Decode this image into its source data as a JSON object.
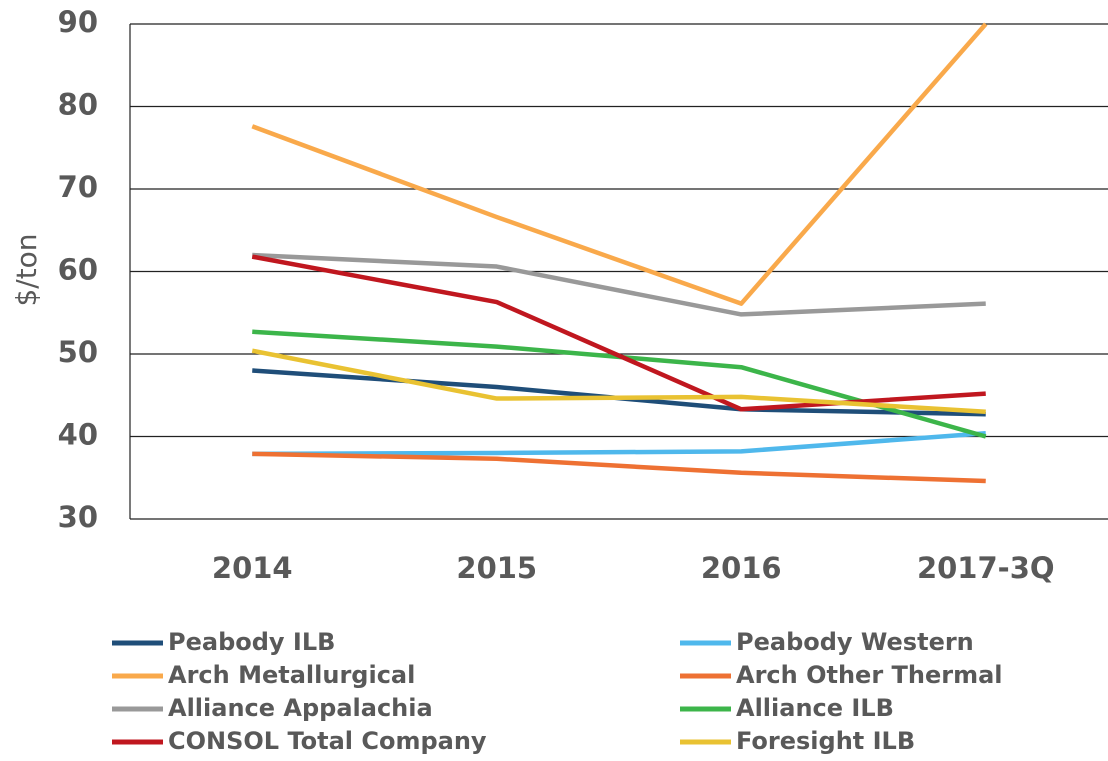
{
  "chart_data": {
    "type": "line",
    "y_label": "$/ton",
    "categories": [
      "2014",
      "2015",
      "2016",
      "2017-3Q"
    ],
    "ylim": [
      30,
      90
    ],
    "yticks": [
      30,
      40,
      50,
      60,
      70,
      80,
      90
    ],
    "grid": true,
    "series": [
      {
        "name": "Peabody ILB",
        "color": "#1f4e79",
        "values": [
          48.0,
          46.0,
          43.3,
          42.7
        ]
      },
      {
        "name": "Peabody Western",
        "color": "#4fb8ec",
        "values": [
          37.9,
          38.0,
          38.2,
          40.4
        ]
      },
      {
        "name": "Arch Metallurgical",
        "color": "#f9a94b",
        "values": [
          77.6,
          66.6,
          56.1,
          90.0
        ]
      },
      {
        "name": "Arch Other Thermal",
        "color": "#ee7133",
        "values": [
          37.9,
          37.3,
          35.6,
          34.6
        ]
      },
      {
        "name": "Alliance Appalachia",
        "color": "#999999",
        "values": [
          62.0,
          60.6,
          54.8,
          56.1
        ]
      },
      {
        "name": "Alliance ILB",
        "color": "#3cb54a",
        "values": [
          52.7,
          50.9,
          48.4,
          40.0
        ]
      },
      {
        "name": "CONSOL Total Company",
        "color": "#c0171f",
        "values": [
          61.8,
          56.3,
          43.3,
          45.2
        ]
      },
      {
        "name": "Foresight ILB",
        "color": "#e9c232",
        "values": [
          50.4,
          44.6,
          44.8,
          43.0
        ]
      }
    ]
  }
}
